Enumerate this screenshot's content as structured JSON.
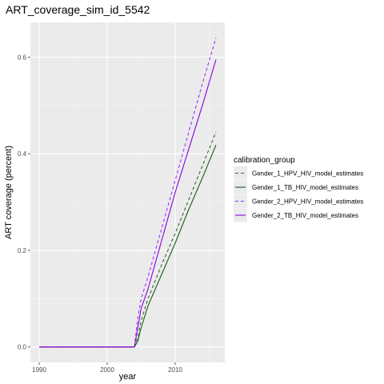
{
  "chart_data": {
    "type": "line",
    "title": "ART_coverage_sim_id_5542",
    "xlabel": "year",
    "ylabel": "ART coverage (percent)",
    "xlim": [
      1988.7,
      2017.3
    ],
    "ylim": [
      -0.032,
      0.672
    ],
    "x_ticks": [
      1990,
      2000,
      2010
    ],
    "x_tick_labels": [
      "1990",
      "2000",
      "2010"
    ],
    "x_minor_ticks": [
      1995,
      2005,
      2015
    ],
    "y_ticks": [
      0.0,
      0.2,
      0.4,
      0.6
    ],
    "y_tick_labels": [
      "0.0",
      "0.2",
      "0.4",
      "0.6"
    ],
    "y_minor_ticks": [
      0.1,
      0.3,
      0.5
    ],
    "grid": true,
    "legend": {
      "title": "calibration_group",
      "placement": "right"
    },
    "series": [
      {
        "name": "Gender_1_HPV_HIV_model_estimates",
        "color": "#336633",
        "dash": "dashed",
        "x": [
          1990,
          2004,
          2004.5,
          2005,
          2006,
          2008,
          2010,
          2012,
          2014,
          2016
        ],
        "y": [
          0,
          0,
          0.02,
          0.055,
          0.1,
          0.17,
          0.235,
          0.305,
          0.375,
          0.445
        ]
      },
      {
        "name": "Gender_1_TB_HIV_model_estimates",
        "color": "#1a5c1a",
        "dash": "solid",
        "x": [
          1990,
          2004,
          2004.5,
          2005,
          2006,
          2008,
          2010,
          2012,
          2014,
          2016
        ],
        "y": [
          0,
          0,
          0.012,
          0.04,
          0.085,
          0.15,
          0.215,
          0.285,
          0.35,
          0.418
        ]
      },
      {
        "name": "Gender_2_HPV_HIV_model_estimates",
        "color": "#9933ff",
        "dash": "dashed",
        "x": [
          1990,
          2004,
          2004.5,
          2005,
          2006,
          2008,
          2010,
          2012,
          2014,
          2016
        ],
        "y": [
          0,
          0,
          0.06,
          0.1,
          0.145,
          0.245,
          0.345,
          0.445,
          0.545,
          0.64
        ]
      },
      {
        "name": "Gender_2_TB_HIV_model_estimates",
        "color": "#8800dd",
        "dash": "solid",
        "x": [
          1990,
          2004,
          2004.5,
          2005,
          2006,
          2008,
          2010,
          2012,
          2014,
          2016
        ],
        "y": [
          0,
          0,
          0.04,
          0.08,
          0.12,
          0.22,
          0.32,
          0.41,
          0.5,
          0.595
        ]
      }
    ]
  }
}
